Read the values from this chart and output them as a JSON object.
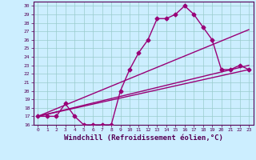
{
  "xlabel": "Windchill (Refroidissement éolien,°C)",
  "bg_color": "#cceeff",
  "line_color": "#990077",
  "grid_color": "#99cccc",
  "xlim": [
    -0.5,
    23.5
  ],
  "ylim": [
    16,
    30.5
  ],
  "xticks": [
    0,
    1,
    2,
    3,
    4,
    5,
    6,
    7,
    8,
    9,
    10,
    11,
    12,
    13,
    14,
    15,
    16,
    17,
    18,
    19,
    20,
    21,
    22,
    23
  ],
  "yticks": [
    16,
    17,
    18,
    19,
    20,
    21,
    22,
    23,
    24,
    25,
    26,
    27,
    28,
    29,
    30
  ],
  "curve_x": [
    0,
    1,
    2,
    3,
    4,
    5,
    6,
    7,
    8,
    9,
    10,
    11,
    12,
    13,
    14,
    15,
    16,
    17,
    18,
    19,
    20,
    21,
    22,
    23
  ],
  "curve_y": [
    17,
    17,
    17,
    18.5,
    17,
    16,
    16,
    16,
    16,
    20,
    22.5,
    24.5,
    26,
    28.5,
    28.5,
    29,
    30,
    29,
    27.5,
    26,
    22.5,
    22.5,
    23,
    22.5
  ],
  "line1_x": [
    0,
    23
  ],
  "line1_y": [
    17.0,
    22.5
  ],
  "line2_x": [
    0,
    23
  ],
  "line2_y": [
    17.0,
    27.2
  ],
  "line3_x": [
    0,
    23
  ],
  "line3_y": [
    17.0,
    23.0
  ],
  "marker": "D",
  "markersize": 2.5,
  "linewidth": 1.0,
  "tick_fontsize": 4.5,
  "xlabel_fontsize": 6.5
}
